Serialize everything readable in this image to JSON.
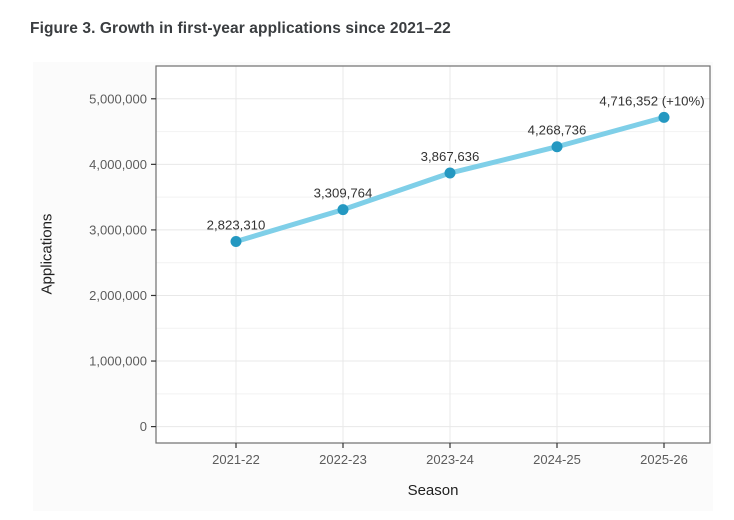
{
  "page": {
    "title": "Figure 3. Growth in first-year applications since 2021–22"
  },
  "chart_data": {
    "type": "line",
    "title": "Figure 3. Growth in first-year applications since 2021–22",
    "xlabel": "Season",
    "ylabel": "Applications",
    "categories": [
      "2021-22",
      "2022-23",
      "2023-24",
      "2024-25",
      "2025-26"
    ],
    "series": [
      {
        "name": "First-year applications",
        "values": [
          2823310,
          3309764,
          3867636,
          4268736,
          4716352
        ],
        "point_labels": [
          "2,823,310",
          "3,309,764",
          "3,867,636",
          "4,268,736",
          "4,716,352 (+10%)"
        ]
      }
    ],
    "ylim": [
      -250000,
      5500000
    ],
    "y_major_ticks": [
      0,
      1000000,
      2000000,
      3000000,
      4000000,
      5000000
    ],
    "y_tick_labels": [
      "0",
      "1,000,000",
      "2,000,000",
      "3,000,000",
      "4,000,000",
      "5,000,000"
    ],
    "y_minor_step": 500000,
    "grid": true,
    "legend_position": "none",
    "colors": {
      "line": "#7fcfe8",
      "point": "#2498c1",
      "grid_major": "#e8e8e8",
      "grid_minor": "#f2f2f2",
      "panel_border": "#6f6f6f",
      "panel_bg": "#ffffff",
      "figure_bg": "#fbfbfb",
      "tick": "#333333",
      "tick_label": "#5c5c5c",
      "axis_title": "#1f1f1f",
      "data_label": "#333333",
      "title": "#3a3d40"
    }
  }
}
